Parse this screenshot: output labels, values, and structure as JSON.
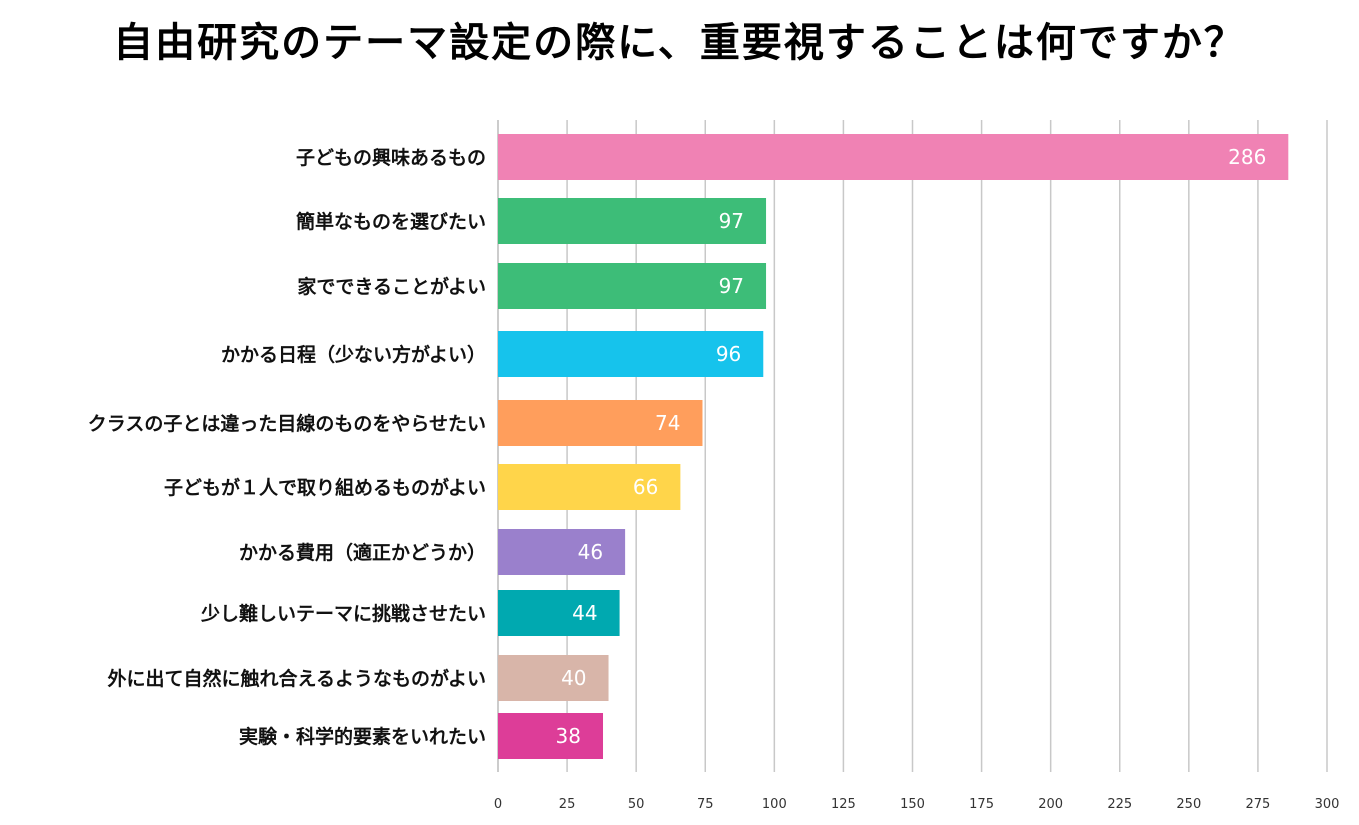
{
  "chart_data": {
    "type": "bar",
    "orientation": "horizontal",
    "title": "自由研究のテーマ設定の際に、重要視することは何ですか？",
    "categories": [
      "子どもの興味あるもの",
      "簡単なものを選びたい",
      "家でできることがよい",
      "かかる日程（少ない方がよい）",
      "クラスの子とは違った目線のものをやらせたい",
      "子どもが１人で取り組めるものがよい",
      "かかる費用（適正かどうか）",
      "少し難しいテーマに挑戦させたい",
      "外に出て自然に触れ合えるようなものがよい",
      "実験・科学的要素をいれたい"
    ],
    "values": [
      286,
      97,
      97,
      96,
      74,
      66,
      46,
      44,
      40,
      38
    ],
    "colors": [
      "#f082b4",
      "#3dbd78",
      "#3dbd78",
      "#16c3ec",
      "#ff9e5c",
      "#ffd54a",
      "#9a80cc",
      "#00a9b0",
      "#d8b5a9",
      "#dd3d98"
    ],
    "xlim": [
      0,
      300
    ],
    "xticks": [
      0,
      25,
      50,
      75,
      100,
      125,
      150,
      175,
      200,
      225,
      250,
      275,
      300
    ],
    "grid": true,
    "data_labels": true
  }
}
